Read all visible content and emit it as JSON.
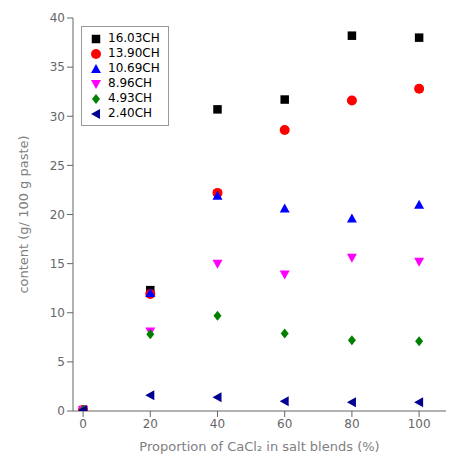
{
  "chart_data": {
    "type": "scatter",
    "x": [
      0,
      20,
      40,
      60,
      80,
      100
    ],
    "series": [
      {
        "name": "16.03CH",
        "color": "#000000",
        "marker": "square",
        "values": [
          0.1,
          12.3,
          30.7,
          31.7,
          38.2,
          38.0
        ]
      },
      {
        "name": "13.90CH",
        "color": "#ff0000",
        "marker": "circle",
        "values": [
          0.1,
          11.9,
          22.2,
          28.6,
          31.6,
          32.8
        ]
      },
      {
        "name": "10.69CH",
        "color": "#0000ff",
        "marker": "triangle_up",
        "values": [
          0.1,
          12.0,
          21.9,
          20.6,
          19.6,
          21.0
        ]
      },
      {
        "name": "8.96CH",
        "color": "#ff00ff",
        "marker": "triangle_down",
        "values": [
          0.1,
          8.1,
          15.0,
          13.9,
          15.6,
          15.2
        ]
      },
      {
        "name": "4.93CH",
        "color": "#008000",
        "marker": "diamond",
        "values": [
          0.1,
          7.8,
          9.7,
          7.9,
          7.2,
          7.1
        ]
      },
      {
        "name": "2.40CH",
        "color": "#000090",
        "marker": "triangle_left",
        "values": [
          0.1,
          1.6,
          1.4,
          1.0,
          0.9,
          0.9
        ]
      }
    ],
    "xlabel": "Proportion of CaCl₂ in salt blends (%)",
    "ylabel": "content (g/ 100 g paste)",
    "xlim": [
      -3,
      108
    ],
    "ylim": [
      0,
      40
    ],
    "xticks": [
      0,
      20,
      40,
      60,
      80,
      100
    ],
    "yticks": [
      0,
      5,
      10,
      15,
      20,
      25,
      30,
      35,
      40
    ],
    "legend": "upper left",
    "grid": false
  }
}
